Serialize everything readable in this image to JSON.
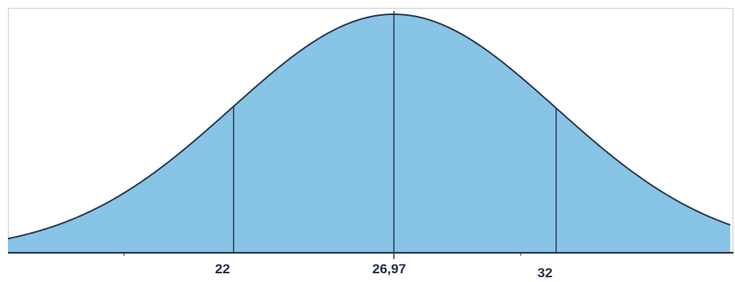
{
  "chart_data": {
    "type": "area",
    "title": "",
    "xlabel": "",
    "ylabel": "",
    "distribution": "normal",
    "mean": 26.97,
    "sd": 5.03,
    "xlim": [
      15,
      37.4
    ],
    "marked_values": [
      22,
      26.97,
      32
    ],
    "tick_labels": [
      "22",
      "26,97",
      "32"
    ],
    "grid": false,
    "legend": "none",
    "colors": {
      "fill": "#87C4E6",
      "curve": "#2B3A4F",
      "markers": "#2B3A4F",
      "axis": "#2B3A4F",
      "frame": "#D0D0D0"
    }
  }
}
